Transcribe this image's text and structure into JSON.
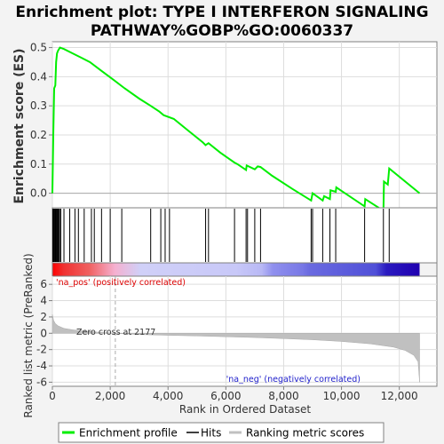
{
  "chart_data": {
    "type": "line",
    "title": "Enrichment plot: TYPE I INTERFERON SIGNALING PATHWAY%GOBP%GO:0060337",
    "title_lines": [
      "Enrichment plot: TYPE I INTERFERON SIGNALING",
      "PATHWAY%GOBP%GO:0060337"
    ],
    "es_panel": {
      "ylabel": "Enrichment score (ES)",
      "ylim": [
        -0.05,
        0.52
      ],
      "yticks": [
        0.0,
        0.1,
        0.2,
        0.3,
        0.4,
        0.5
      ],
      "ytick_labels": [
        "0.0",
        "0.1",
        "0.2",
        "0.3",
        "0.4",
        "0.5"
      ],
      "series_color": "#00ee00",
      "grid": true
    },
    "enrichment_profile": [
      [
        0,
        0.0
      ],
      [
        30,
        0.2
      ],
      [
        60,
        0.36
      ],
      [
        100,
        0.37
      ],
      [
        130,
        0.45
      ],
      [
        160,
        0.48
      ],
      [
        200,
        0.49
      ],
      [
        260,
        0.5
      ],
      [
        400,
        0.495
      ],
      [
        700,
        0.48
      ],
      [
        1000,
        0.465
      ],
      [
        1300,
        0.45
      ],
      [
        1700,
        0.42
      ],
      [
        2100,
        0.39
      ],
      [
        2500,
        0.36
      ],
      [
        3000,
        0.325
      ],
      [
        3400,
        0.3
      ],
      [
        3700,
        0.28
      ],
      [
        3850,
        0.268
      ],
      [
        4200,
        0.255
      ],
      [
        4700,
        0.215
      ],
      [
        5200,
        0.175
      ],
      [
        5300,
        0.165
      ],
      [
        5400,
        0.172
      ],
      [
        5800,
        0.14
      ],
      [
        6300,
        0.105
      ],
      [
        6400,
        0.1
      ],
      [
        6700,
        0.08
      ],
      [
        6720,
        0.095
      ],
      [
        7000,
        0.082
      ],
      [
        7100,
        0.092
      ],
      [
        7200,
        0.09
      ],
      [
        7600,
        0.06
      ],
      [
        8300,
        0.015
      ],
      [
        8950,
        -0.025
      ],
      [
        9000,
        0.0
      ],
      [
        9350,
        -0.025
      ],
      [
        9400,
        -0.01
      ],
      [
        9600,
        -0.02
      ],
      [
        9620,
        0.01
      ],
      [
        9800,
        0.005
      ],
      [
        9820,
        0.02
      ],
      [
        10800,
        -0.045
      ],
      [
        10820,
        -0.02
      ],
      [
        11450,
        -0.06
      ],
      [
        11470,
        0.04
      ],
      [
        11600,
        0.03
      ],
      [
        11650,
        0.085
      ],
      [
        12700,
        0.0
      ]
    ],
    "hits": [
      15,
      45,
      70,
      95,
      115,
      140,
      165,
      190,
      215,
      250,
      290,
      400,
      600,
      780,
      900,
      1100,
      1350,
      1450,
      1700,
      2000,
      2400,
      3400,
      3750,
      3900,
      4050,
      5300,
      5400,
      6300,
      6700,
      6750,
      7000,
      7200,
      8950,
      9000,
      9350,
      9600,
      9800,
      10800,
      11450,
      11650
    ],
    "rank_panel": {
      "ylabel": "Ranked list metric (PreRanked)",
      "ylim": [
        -6.5,
        7
      ],
      "yticks": [
        -6,
        -4,
        -2,
        0,
        2,
        4,
        6
      ],
      "ytick_labels": [
        "-6",
        "-4",
        "-2",
        "0",
        "2",
        "4",
        "6"
      ],
      "pos_label": "'na_pos' (positively correlated)",
      "neg_label": "'na_neg' (negatively correlated)",
      "zero_cross_label": "Zero cross at 2177",
      "zero_cross": 2177,
      "metric_profile": [
        [
          0,
          2.3
        ],
        [
          40,
          1.6
        ],
        [
          100,
          1.2
        ],
        [
          200,
          0.9
        ],
        [
          400,
          0.6
        ],
        [
          700,
          0.42
        ],
        [
          1000,
          0.3
        ],
        [
          1500,
          0.15
        ],
        [
          2177,
          0.0
        ],
        [
          3000,
          -0.15
        ],
        [
          4000,
          -0.25
        ],
        [
          5000,
          -0.33
        ],
        [
          6000,
          -0.42
        ],
        [
          7000,
          -0.52
        ],
        [
          8000,
          -0.65
        ],
        [
          9000,
          -0.8
        ],
        [
          10000,
          -1.0
        ],
        [
          11000,
          -1.3
        ],
        [
          11800,
          -1.7
        ],
        [
          12200,
          -2.1
        ],
        [
          12500,
          -2.7
        ],
        [
          12650,
          -3.5
        ],
        [
          12700,
          -6.0
        ]
      ]
    },
    "xlabel": "Rank in Ordered Dataset",
    "xlim": [
      0,
      13300
    ],
    "xticks": [
      0,
      2000,
      4000,
      6000,
      8000,
      10000,
      12000
    ],
    "xtick_labels": [
      "0",
      "2,000",
      "4,000",
      "6,000",
      "8,000",
      "10,000",
      "12,000"
    ],
    "n_genes": 12700,
    "legend": {
      "placement": "bottom",
      "entries": [
        {
          "label": "Enrichment profile",
          "color": "#00ee00"
        },
        {
          "label": "Hits",
          "color": "#000000"
        },
        {
          "label": "Ranking metric scores",
          "color": "#c0c0c0"
        }
      ]
    },
    "colors": {
      "profile": "#00ee00",
      "metric_fill": "#c0c0c0",
      "pos_label": "#dd0000",
      "neg_label": "#2222cc",
      "grid": "#dddddd"
    }
  }
}
